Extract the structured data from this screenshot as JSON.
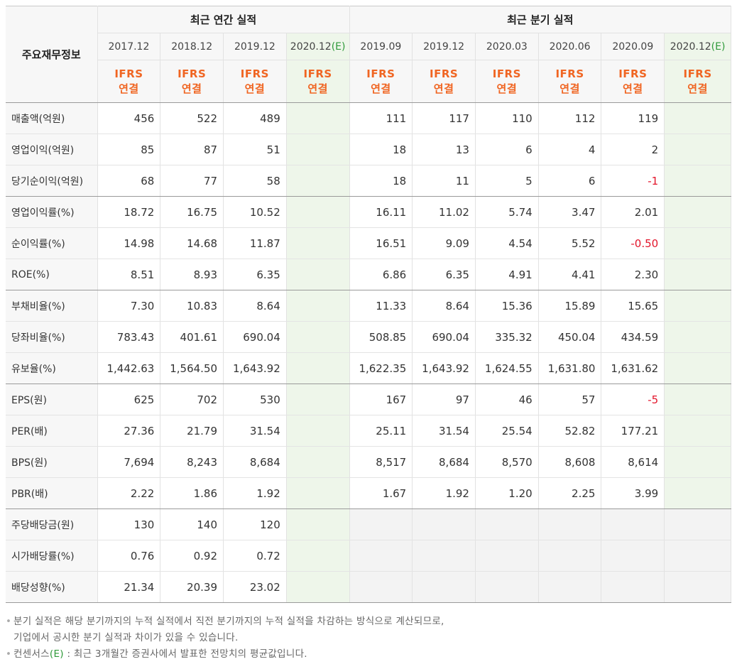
{
  "header": {
    "row_label": "주요재무정보",
    "annual_title": "최근 연간 실적",
    "quarter_title": "최근 분기 실적",
    "annual_periods": [
      {
        "label": "2017.12",
        "est": ""
      },
      {
        "label": "2018.12",
        "est": ""
      },
      {
        "label": "2019.12",
        "est": ""
      },
      {
        "label": "2020.12",
        "est": "(E)"
      }
    ],
    "quarter_periods": [
      {
        "label": "2019.09",
        "est": ""
      },
      {
        "label": "2019.12",
        "est": ""
      },
      {
        "label": "2020.03",
        "est": ""
      },
      {
        "label": "2020.06",
        "est": ""
      },
      {
        "label": "2020.09",
        "est": ""
      },
      {
        "label": "2020.12",
        "est": "(E)"
      }
    ],
    "ifrs_line1": "IFRS",
    "ifrs_line2": "연결"
  },
  "rows": [
    {
      "label": "매출액(억원)",
      "annual": [
        "456",
        "522",
        "489",
        ""
      ],
      "quarter": [
        "111",
        "117",
        "110",
        "112",
        "119",
        ""
      ]
    },
    {
      "label": "영업이익(억원)",
      "annual": [
        "85",
        "87",
        "51",
        ""
      ],
      "quarter": [
        "18",
        "13",
        "6",
        "4",
        "2",
        ""
      ]
    },
    {
      "label": "당기순이익(억원)",
      "annual": [
        "68",
        "77",
        "58",
        ""
      ],
      "quarter": [
        "18",
        "11",
        "5",
        "6",
        "-1",
        ""
      ]
    },
    {
      "label": "영업이익률(%)",
      "annual": [
        "18.72",
        "16.75",
        "10.52",
        ""
      ],
      "quarter": [
        "16.11",
        "11.02",
        "5.74",
        "3.47",
        "2.01",
        ""
      ]
    },
    {
      "label": "순이익률(%)",
      "annual": [
        "14.98",
        "14.68",
        "11.87",
        ""
      ],
      "quarter": [
        "16.51",
        "9.09",
        "4.54",
        "5.52",
        "-0.50",
        ""
      ]
    },
    {
      "label": "ROE(%)",
      "annual": [
        "8.51",
        "8.93",
        "6.35",
        ""
      ],
      "quarter": [
        "6.86",
        "6.35",
        "4.91",
        "4.41",
        "2.30",
        ""
      ]
    },
    {
      "label": "부채비율(%)",
      "annual": [
        "7.30",
        "10.83",
        "8.64",
        ""
      ],
      "quarter": [
        "11.33",
        "8.64",
        "15.36",
        "15.89",
        "15.65",
        ""
      ]
    },
    {
      "label": "당좌비율(%)",
      "annual": [
        "783.43",
        "401.61",
        "690.04",
        ""
      ],
      "quarter": [
        "508.85",
        "690.04",
        "335.32",
        "450.04",
        "434.59",
        ""
      ]
    },
    {
      "label": "유보율(%)",
      "annual": [
        "1,442.63",
        "1,564.50",
        "1,643.92",
        ""
      ],
      "quarter": [
        "1,622.35",
        "1,643.92",
        "1,624.55",
        "1,631.80",
        "1,631.62",
        ""
      ]
    },
    {
      "label": "EPS(원)",
      "annual": [
        "625",
        "702",
        "530",
        ""
      ],
      "quarter": [
        "167",
        "97",
        "46",
        "57",
        "-5",
        ""
      ]
    },
    {
      "label": "PER(배)",
      "annual": [
        "27.36",
        "21.79",
        "31.54",
        ""
      ],
      "quarter": [
        "25.11",
        "31.54",
        "25.54",
        "52.82",
        "177.21",
        ""
      ]
    },
    {
      "label": "BPS(원)",
      "annual": [
        "7,694",
        "8,243",
        "8,684",
        ""
      ],
      "quarter": [
        "8,517",
        "8,684",
        "8,570",
        "8,608",
        "8,614",
        ""
      ]
    },
    {
      "label": "PBR(배)",
      "annual": [
        "2.22",
        "1.86",
        "1.92",
        ""
      ],
      "quarter": [
        "1.67",
        "1.92",
        "1.20",
        "2.25",
        "3.99",
        ""
      ]
    },
    {
      "label": "주당배당금(원)",
      "annual": [
        "130",
        "140",
        "120",
        ""
      ],
      "quarter": [
        "",
        "",
        "",
        "",
        "",
        ""
      ]
    },
    {
      "label": "시가배당률(%)",
      "annual": [
        "0.76",
        "0.92",
        "0.72",
        ""
      ],
      "quarter": [
        "",
        "",
        "",
        "",
        "",
        ""
      ]
    },
    {
      "label": "배당성향(%)",
      "annual": [
        "21.34",
        "20.39",
        "23.02",
        ""
      ],
      "quarter": [
        "",
        "",
        "",
        "",
        "",
        ""
      ]
    }
  ],
  "notes": {
    "bullet": "•",
    "line1": "분기 실적은 해당 분기까지의 누적 실적에서 직전 분기까지의 누적 실적을 차감하는 방식으로 계산되므로,",
    "line2": "기업에서 공시한 분기 실적과 차이가 있을 수 있습니다.",
    "line3_prefix": "컨센서스",
    "line3_tag": "(E)",
    "line3_rest": " : 최근 3개월간 증권사에서 발표한 전망치의 평균값입니다."
  },
  "colors": {
    "ifrs": "#f06522",
    "estimate_tag": "#2f9a3a",
    "estimate_bg": "#eef6ea",
    "negative": "#e3152b",
    "header_bg": "#f7f7f7"
  }
}
